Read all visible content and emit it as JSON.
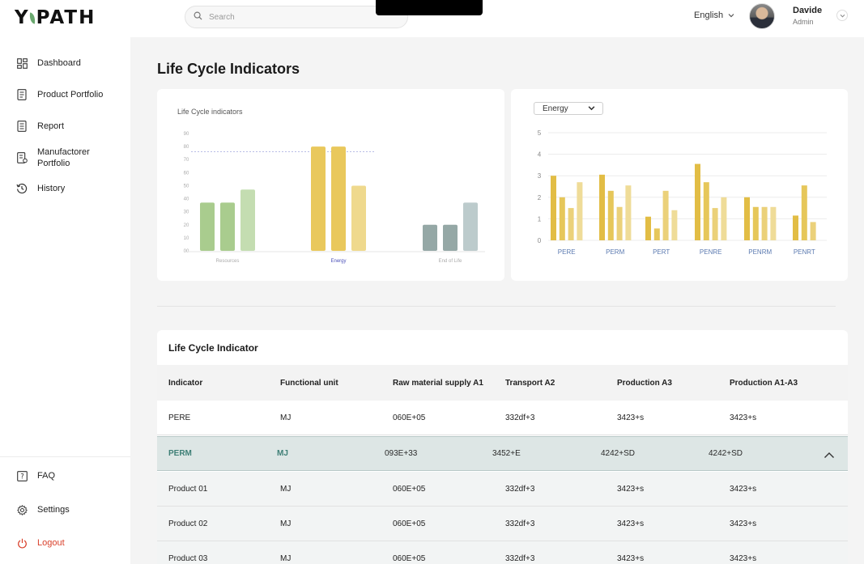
{
  "app": {
    "logo_left": "Y",
    "logo_right": "PATH"
  },
  "search": {
    "placeholder": "Search"
  },
  "header": {
    "language": "English",
    "user_name": "Davide",
    "user_role": "Admin"
  },
  "sidebar": {
    "items": [
      {
        "label": "Dashboard",
        "icon": "dashboard-icon"
      },
      {
        "label": "Product Portfolio",
        "icon": "document-icon"
      },
      {
        "label": "Report",
        "icon": "report-icon"
      },
      {
        "label": "Manufactorer Portfolio",
        "icon": "portfolio-icon"
      },
      {
        "label": "History",
        "icon": "history-icon"
      }
    ],
    "bottom": [
      {
        "label": "FAQ",
        "icon": "faq-icon"
      },
      {
        "label": "Settings",
        "icon": "gear-icon"
      },
      {
        "label": "Logout",
        "icon": "power-icon"
      }
    ]
  },
  "page": {
    "title": "Life Cycle Indicators"
  },
  "chart_data": [
    {
      "type": "bar",
      "title": "Life Cycle indicators",
      "categories": [
        "Resources",
        "Energy",
        "End of Life"
      ],
      "highlighted_category": "Energy",
      "yticks": [
        "00",
        "10",
        "20",
        "30",
        "40",
        "50",
        "60",
        "70",
        "80",
        "90"
      ],
      "ylim": [
        0,
        90
      ],
      "reference_line": 76,
      "groups": [
        {
          "category": "Resources",
          "values": [
            37,
            37,
            47
          ],
          "colors": [
            "#a9cc8e",
            "#a9cc8e",
            "#c4ddb1"
          ]
        },
        {
          "category": "Energy",
          "values": [
            80,
            80,
            50
          ],
          "colors": [
            "#e9c85c",
            "#e9c85c",
            "#efd98d"
          ]
        },
        {
          "category": "End of Life",
          "values": [
            20,
            20,
            37
          ],
          "colors": [
            "#95a8a6",
            "#95a8a6",
            "#bccbcc"
          ]
        }
      ],
      "grid": false
    },
    {
      "type": "bar",
      "filter": "Energy",
      "categories": [
        "PERE",
        "PERM",
        "PERT",
        "PENRE",
        "PENRM",
        "PENRT"
      ],
      "yticks": [
        "0",
        "1",
        "2",
        "3",
        "4",
        "5"
      ],
      "ylim": [
        0,
        5
      ],
      "grid": true,
      "groups": [
        {
          "category": "PERE",
          "values": [
            3.0,
            2.0,
            1.5,
            2.7
          ]
        },
        {
          "category": "PERM",
          "values": [
            3.05,
            2.3,
            1.55,
            2.55
          ]
        },
        {
          "category": "PERT",
          "values": [
            1.1,
            0.55,
            2.3,
            1.4
          ]
        },
        {
          "category": "PENRE",
          "values": [
            3.55,
            2.7,
            1.5,
            2.0
          ]
        },
        {
          "category": "PENRM",
          "values": [
            2.0,
            1.55,
            1.55,
            1.55
          ]
        },
        {
          "category": "PENRT",
          "values": [
            1.15,
            2.55,
            0.85
          ]
        }
      ],
      "colors": [
        "#e2bd45",
        "#e6c75a",
        "#ebd17a",
        "#efdc98"
      ]
    }
  ],
  "table": {
    "title": "Life Cycle Indicator",
    "columns": [
      "Indicator",
      "Functional unit",
      "Raw material supply A1",
      "Transport A2",
      "Production A3",
      "Production A1-A3"
    ],
    "rows": [
      {
        "cells": [
          "PERE",
          "MJ",
          "060E+05",
          "332df+3",
          "3423+s",
          "3423+s"
        ],
        "state": "normal"
      },
      {
        "cells": [
          "PERM",
          "MJ",
          "093E+33",
          "3452+E",
          "4242+SD",
          "4242+SD"
        ],
        "state": "expanded"
      },
      {
        "cells": [
          "Product 01",
          "MJ",
          "060E+05",
          "332df+3",
          "3423+s",
          "3423+s"
        ],
        "state": "sub"
      },
      {
        "cells": [
          "Product 02",
          "MJ",
          "060E+05",
          "332df+3",
          "3423+s",
          "3423+s"
        ],
        "state": "sub"
      },
      {
        "cells": [
          "Product 03",
          "MJ",
          "060E+05",
          "332df+3",
          "3423+s",
          "3423+s"
        ],
        "state": "sub"
      }
    ]
  }
}
